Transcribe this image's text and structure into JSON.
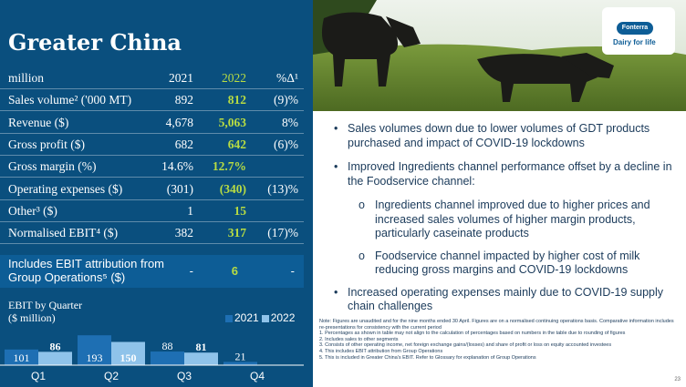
{
  "title": "Greater China",
  "table": {
    "header": {
      "label": "million",
      "y2021": "2021",
      "y2022": "2022",
      "pct": "%Δ¹"
    },
    "rows": [
      {
        "label": "Sales volume² ('000 MT)",
        "y2021": "892",
        "y2022": "812",
        "pct": "(9)%"
      },
      {
        "label": "Revenue ($)",
        "y2021": "4,678",
        "y2022": "5,063",
        "pct": "8%"
      },
      {
        "label": "Gross profit ($)",
        "y2021": "682",
        "y2022": "642",
        "pct": "(6)%"
      },
      {
        "label": "Gross margin (%)",
        "y2021": "14.6%",
        "y2022": "12.7%",
        "pct": ""
      },
      {
        "label": "Operating expenses ($)",
        "y2021": "(301)",
        "y2022": "(340)",
        "pct": "(13)%"
      },
      {
        "label": "Other³ ($)",
        "y2021": "1",
        "y2022": "15",
        "pct": ""
      },
      {
        "label": "Normalised EBIT⁴ ($)",
        "y2021": "382",
        "y2022": "317",
        "pct": "(17)%"
      }
    ],
    "includes": {
      "label": "Includes EBIT attribution from Group Operations⁵ ($)",
      "y2021": "-",
      "y2022": "6",
      "pct": "-"
    }
  },
  "chart_title": {
    "line1": "EBIT by Quarter",
    "line2": "($ million)"
  },
  "chart_data": {
    "type": "bar",
    "title": "EBIT by Quarter ($ million)",
    "categories": [
      "Q1",
      "Q2",
      "Q3",
      "Q4"
    ],
    "series": [
      {
        "name": "2021",
        "values": [
          101,
          193,
          88,
          21
        ],
        "color": "#1e6fb3"
      },
      {
        "name": "2022",
        "values": [
          86,
          150,
          81,
          null
        ],
        "color": "#8fc3ea"
      }
    ],
    "legend": "top-right"
  },
  "logo": {
    "brand": "Fonterra",
    "tagline": "Dairy for life"
  },
  "bullets": [
    {
      "text": "Sales volumes down due to lower volumes of GDT products purchased and impact of COVID-19 lockdowns",
      "subs": []
    },
    {
      "text": "Improved Ingredients channel performance offset by a decline in the Foodservice channel:",
      "subs": [
        "Ingredients channel improved due to higher prices and increased sales volumes of higher margin products, particularly caseinate products",
        "Foodservice channel impacted by higher cost of milk reducing gross margins and COVID-19 lockdowns"
      ]
    },
    {
      "text": "Increased operating expenses mainly due to COVID-19 supply chain challenges",
      "subs": []
    }
  ],
  "notes": [
    "Note: Figures are unaudited and for the nine months ended 30 April. Figures are on a normalised continuing operations basis. Comparative information includes re-presentations for consistency with the current period",
    "1.  Percentages as shown in table may not align to the calculation of percentages based on numbers in the table due to rounding of figures",
    "2.  Includes sales to other segments",
    "3.  Consists of other operating income, net foreign exchange gains/(losses) and share of profit or loss on equity accounted investees",
    "4.  This includes EBIT attribution from Group Operations",
    "5.  This is included in Greater China's EBIT. Refer to Glossary for explanation of Group Operations"
  ],
  "page_number": "23",
  "colors": {
    "panel": "#0a4f7e",
    "accent_green": "#b8dc43",
    "bar2021": "#1e6fb3",
    "bar2022": "#8fc3ea"
  }
}
